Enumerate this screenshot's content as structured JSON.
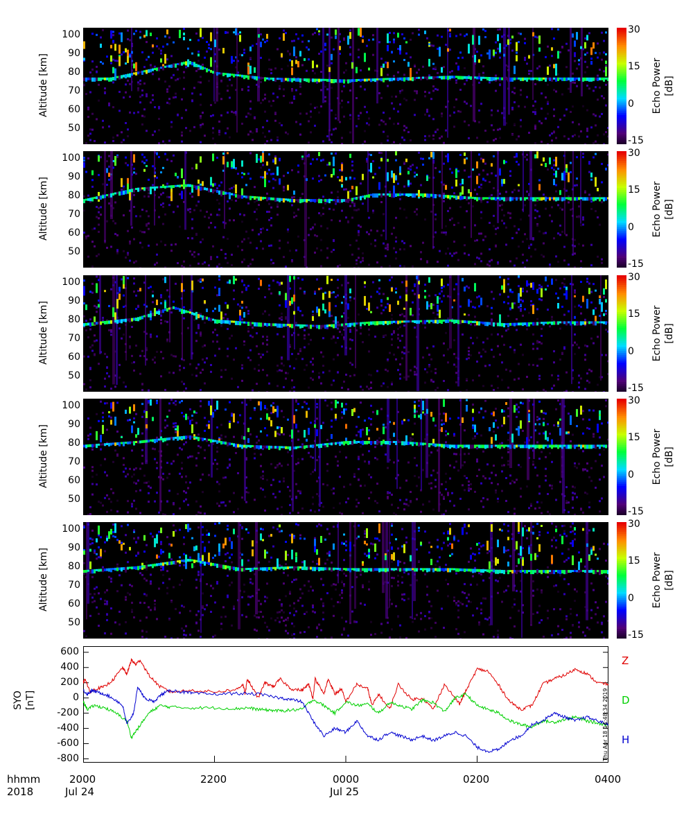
{
  "chart_data": [
    {
      "type": "heatmap",
      "panel": 1,
      "ylabel": "Altitude [km]",
      "yticks": [
        50,
        60,
        70,
        80,
        90,
        100
      ],
      "ylim": [
        42,
        104
      ],
      "colorbar": {
        "title": "Echo Power [dB]",
        "ticks": [
          -15,
          0,
          15,
          30
        ]
      },
      "layer_track": [
        [
          0,
          76
        ],
        [
          0.05,
          76
        ],
        [
          0.15,
          82
        ],
        [
          0.2,
          85
        ],
        [
          0.25,
          79
        ],
        [
          0.35,
          76
        ],
        [
          0.5,
          75
        ],
        [
          0.6,
          76
        ],
        [
          0.7,
          77
        ],
        [
          0.8,
          76
        ],
        [
          0.9,
          76
        ]
      ]
    },
    {
      "type": "heatmap",
      "panel": 2,
      "ylabel": "Altitude [km]",
      "yticks": [
        50,
        60,
        70,
        80,
        90,
        100
      ],
      "ylim": [
        42,
        104
      ],
      "colorbar": {
        "title": "Echo Power [dB]",
        "ticks": [
          -15,
          0,
          15,
          30
        ]
      },
      "layer_track": [
        [
          0,
          77
        ],
        [
          0.1,
          83
        ],
        [
          0.2,
          85
        ],
        [
          0.3,
          79
        ],
        [
          0.4,
          77
        ],
        [
          0.5,
          77
        ],
        [
          0.55,
          80
        ],
        [
          0.65,
          80
        ],
        [
          0.75,
          78
        ]
      ]
    },
    {
      "type": "heatmap",
      "panel": 3,
      "ylabel": "Altitude [km]",
      "yticks": [
        50,
        60,
        70,
        80,
        90,
        100
      ],
      "ylim": [
        42,
        104
      ],
      "colorbar": {
        "title": "Echo Power [dB]",
        "ticks": [
          -15,
          0,
          15,
          30
        ]
      },
      "layer_track": [
        [
          0,
          77
        ],
        [
          0.1,
          80
        ],
        [
          0.17,
          86
        ],
        [
          0.25,
          79
        ],
        [
          0.35,
          77
        ],
        [
          0.45,
          76
        ],
        [
          0.55,
          78
        ],
        [
          0.7,
          79
        ],
        [
          0.8,
          77
        ],
        [
          0.9,
          78
        ]
      ]
    },
    {
      "type": "heatmap",
      "panel": 4,
      "ylabel": "Altitude [km]",
      "yticks": [
        50,
        60,
        70,
        80,
        90,
        100
      ],
      "ylim": [
        42,
        104
      ],
      "colorbar": {
        "title": "Echo Power [dB]",
        "ticks": [
          -15,
          0,
          15,
          30
        ]
      },
      "layer_track": [
        [
          0,
          78
        ],
        [
          0.1,
          80
        ],
        [
          0.2,
          83
        ],
        [
          0.3,
          78
        ],
        [
          0.4,
          77
        ],
        [
          0.5,
          80
        ],
        [
          0.6,
          80
        ],
        [
          0.7,
          78
        ],
        [
          0.8,
          78
        ]
      ]
    },
    {
      "type": "heatmap",
      "panel": 5,
      "ylabel": "Altitude [km]",
      "yticks": [
        50,
        60,
        70,
        80,
        90,
        100
      ],
      "ylim": [
        42,
        104
      ],
      "colorbar": {
        "title": "Echo Power [dB]",
        "ticks": [
          -15,
          0,
          15,
          30
        ]
      },
      "layer_track": [
        [
          0,
          77
        ],
        [
          0.1,
          79
        ],
        [
          0.2,
          83
        ],
        [
          0.3,
          78
        ],
        [
          0.4,
          79
        ],
        [
          0.5,
          78
        ],
        [
          0.6,
          78
        ],
        [
          0.7,
          78
        ],
        [
          0.8,
          77
        ]
      ]
    },
    {
      "type": "line",
      "panel": 6,
      "ylabel": "SYO [nT]",
      "yticks": [
        600,
        400,
        200,
        0,
        -200,
        -400,
        -600,
        -800
      ],
      "ylim": [
        -850,
        680
      ],
      "series": [
        {
          "name": "Z",
          "color": "#e00000",
          "points": [
            [
              0,
              200
            ],
            [
              0.01,
              250
            ],
            [
              0.03,
              80
            ],
            [
              0.06,
              120
            ],
            [
              0.1,
              150
            ],
            [
              0.14,
              250
            ],
            [
              0.18,
              400
            ],
            [
              0.2,
              310
            ],
            [
              0.22,
              500
            ],
            [
              0.24,
              440
            ],
            [
              0.26,
              500
            ],
            [
              0.3,
              300
            ],
            [
              0.35,
              150
            ],
            [
              0.4,
              80
            ],
            [
              0.5,
              100
            ],
            [
              0.6,
              80
            ],
            [
              0.7,
              110
            ],
            [
              0.73,
              180
            ],
            [
              0.74,
              50
            ],
            [
              0.75,
              250
            ],
            [
              0.77,
              150
            ],
            [
              0.8,
              0
            ],
            [
              0.83,
              200
            ],
            [
              0.87,
              150
            ],
            [
              0.9,
              250
            ],
            [
              0.95,
              120
            ],
            [
              1.0,
              100
            ],
            [
              1.03,
              180
            ],
            [
              1.05,
              0
            ],
            [
              1.06,
              250
            ],
            [
              1.1,
              50
            ],
            [
              1.12,
              250
            ],
            [
              1.15,
              50
            ],
            [
              1.18,
              120
            ],
            [
              1.2,
              -50
            ],
            [
              1.25,
              180
            ],
            [
              1.3,
              120
            ],
            [
              1.32,
              -100
            ],
            [
              1.35,
              50
            ],
            [
              1.4,
              -150
            ],
            [
              1.44,
              180
            ],
            [
              1.5,
              -20
            ],
            [
              1.55,
              0
            ],
            [
              1.6,
              -150
            ],
            [
              1.65,
              180
            ],
            [
              1.72,
              -80
            ],
            [
              1.75,
              100
            ],
            [
              1.8,
              380
            ],
            [
              1.85,
              350
            ],
            [
              1.9,
              160
            ],
            [
              1.95,
              -50
            ],
            [
              2.0,
              -150
            ],
            [
              2.05,
              -100
            ],
            [
              2.1,
              180
            ],
            [
              2.15,
              250
            ],
            [
              2.2,
              300
            ],
            [
              2.25,
              380
            ],
            [
              2.3,
              320
            ],
            [
              2.35,
              200
            ],
            [
              2.4,
              180
            ]
          ]
        },
        {
          "name": "D",
          "color": "#00d000",
          "points": [
            [
              0,
              -50
            ],
            [
              0.02,
              -150
            ],
            [
              0.05,
              -100
            ],
            [
              0.1,
              -130
            ],
            [
              0.15,
              -200
            ],
            [
              0.2,
              -300
            ],
            [
              0.22,
              -520
            ],
            [
              0.25,
              -400
            ],
            [
              0.3,
              -200
            ],
            [
              0.35,
              -100
            ],
            [
              0.4,
              -120
            ],
            [
              0.5,
              -130
            ],
            [
              0.6,
              -130
            ],
            [
              0.7,
              -140
            ],
            [
              0.75,
              -130
            ],
            [
              0.8,
              -150
            ],
            [
              0.85,
              -160
            ],
            [
              0.9,
              -170
            ],
            [
              0.95,
              -160
            ],
            [
              1.0,
              -150
            ],
            [
              1.05,
              -20
            ],
            [
              1.1,
              -100
            ],
            [
              1.15,
              -200
            ],
            [
              1.2,
              -50
            ],
            [
              1.25,
              -100
            ],
            [
              1.3,
              -80
            ],
            [
              1.35,
              -200
            ],
            [
              1.4,
              -60
            ],
            [
              1.45,
              -100
            ],
            [
              1.5,
              -150
            ],
            [
              1.55,
              -30
            ],
            [
              1.6,
              -60
            ],
            [
              1.65,
              -180
            ],
            [
              1.7,
              0
            ],
            [
              1.75,
              50
            ],
            [
              1.8,
              -100
            ],
            [
              1.85,
              -150
            ],
            [
              1.9,
              -200
            ],
            [
              1.95,
              -300
            ],
            [
              2.0,
              -350
            ],
            [
              2.05,
              -380
            ],
            [
              2.1,
              -300
            ],
            [
              2.15,
              -320
            ],
            [
              2.2,
              -280
            ],
            [
              2.25,
              -250
            ],
            [
              2.3,
              -300
            ],
            [
              2.35,
              -330
            ],
            [
              2.4,
              -360
            ]
          ]
        },
        {
          "name": "H",
          "color": "#0000d0",
          "points": [
            [
              0,
              100
            ],
            [
              0.02,
              50
            ],
            [
              0.04,
              100
            ],
            [
              0.06,
              80
            ],
            [
              0.1,
              50
            ],
            [
              0.15,
              -30
            ],
            [
              0.18,
              -100
            ],
            [
              0.2,
              -350
            ],
            [
              0.23,
              -200
            ],
            [
              0.25,
              150
            ],
            [
              0.28,
              0
            ],
            [
              0.32,
              -50
            ],
            [
              0.36,
              50
            ],
            [
              0.4,
              100
            ],
            [
              0.45,
              80
            ],
            [
              0.5,
              60
            ],
            [
              0.6,
              50
            ],
            [
              0.7,
              60
            ],
            [
              0.8,
              50
            ],
            [
              0.9,
              0
            ],
            [
              0.95,
              -20
            ],
            [
              1.0,
              -50
            ],
            [
              1.05,
              -300
            ],
            [
              1.1,
              -500
            ],
            [
              1.15,
              -400
            ],
            [
              1.2,
              -450
            ],
            [
              1.25,
              -300
            ],
            [
              1.3,
              -500
            ],
            [
              1.35,
              -550
            ],
            [
              1.4,
              -450
            ],
            [
              1.45,
              -500
            ],
            [
              1.5,
              -550
            ],
            [
              1.55,
              -500
            ],
            [
              1.6,
              -560
            ],
            [
              1.65,
              -500
            ],
            [
              1.7,
              -450
            ],
            [
              1.75,
              -500
            ],
            [
              1.8,
              -650
            ],
            [
              1.85,
              -700
            ],
            [
              1.9,
              -680
            ],
            [
              1.95,
              -550
            ],
            [
              2.0,
              -500
            ],
            [
              2.05,
              -350
            ],
            [
              2.1,
              -300
            ],
            [
              2.15,
              -200
            ],
            [
              2.2,
              -250
            ],
            [
              2.25,
              -300
            ],
            [
              2.3,
              -250
            ],
            [
              2.35,
              -300
            ],
            [
              2.4,
              -350
            ]
          ]
        }
      ]
    }
  ],
  "xaxis": {
    "row1_label": "hhmm",
    "row2_label": "2018",
    "ticks": [
      {
        "hhmm": "2000",
        "date": "Jul 24"
      },
      {
        "hhmm": "2200",
        "date": ""
      },
      {
        "hhmm": "0000",
        "date": "Jul 25"
      },
      {
        "hhmm": "0200",
        "date": ""
      },
      {
        "hhmm": "0400",
        "date": ""
      }
    ]
  },
  "timestamp": "Thu Apr 18 14:48:34 2019"
}
